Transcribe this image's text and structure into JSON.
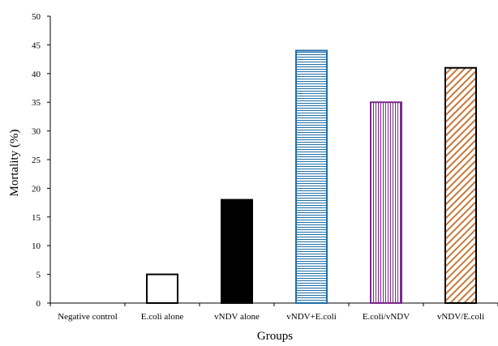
{
  "chart_data": {
    "type": "bar",
    "title": "",
    "xlabel": "Groups",
    "ylabel": "Mortality (%)",
    "ylim": [
      0,
      50
    ],
    "yticks": [
      0,
      5,
      10,
      15,
      20,
      25,
      30,
      35,
      40,
      45,
      50
    ],
    "categories": [
      "Negative control",
      "E.coli alone",
      "vNDV alone",
      "vNDV+E.coli",
      "E.coli/vNDV",
      "vNDV/E.coli"
    ],
    "values": [
      0,
      5,
      18,
      44,
      35,
      41
    ],
    "grid": false,
    "legend": "none",
    "bar_styles": [
      {
        "fill": "none",
        "stroke": "#000000"
      },
      {
        "fill": "#ffffff",
        "stroke": "#000000"
      },
      {
        "fill": "#000000",
        "stroke": "#000000"
      },
      {
        "fill": "horizontal-lines",
        "stroke": "#1f6fa8",
        "line_color": "#1f6fa8"
      },
      {
        "fill": "vertical-lines",
        "stroke": "#7a2a8c",
        "line_color": "#7a2a8c"
      },
      {
        "fill": "diagonal-lines",
        "stroke": "#000000",
        "line_color": "#c8783a"
      }
    ]
  }
}
